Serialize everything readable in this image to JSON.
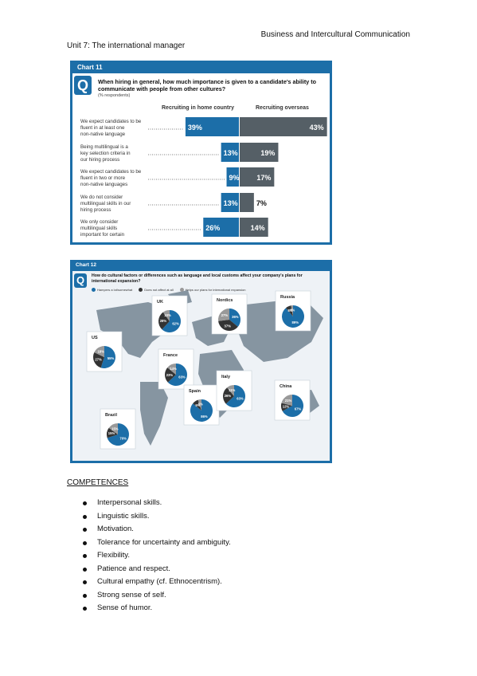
{
  "header": {
    "right": "Business and Intercultural Communication",
    "left": "Unit 7: The international manager"
  },
  "chart11": {
    "title": "Chart 11",
    "q_badge": "Q",
    "question": "When hiring in general, how much importance is given to a candidate's ability to communicate with people from other cultures?",
    "note": "(% respondents)",
    "col_home": "Recruiting in home country",
    "col_overseas": "Recruiting overseas"
  },
  "chart12": {
    "title": "Chart 12",
    "q_badge": "Q",
    "question": "How do cultural factors or differences such as language and local customs affect your company's plans for international expansion?",
    "legend": [
      {
        "label": "Hampers a lot/somewhat",
        "color": "#1c6ea8"
      },
      {
        "label": "Does not affect at all",
        "color": "#333333"
      },
      {
        "label": "Helps our plans for international expansion",
        "color": "#999999"
      }
    ]
  },
  "chart_data": [
    {
      "type": "bar",
      "title": "When hiring in general, how much importance is given to a candidate's ability to communicate with people from other cultures?",
      "categories": [
        "We expect candidates to be fluent in at least one non-native language",
        "Being multilingual is a key selection criteria in our hiring process",
        "We expect candidates to be fluent in two or more non-native languages",
        "We do not consider multilingual skills in our hiring process",
        "We only consider multilingual skills important for certain roles"
      ],
      "series": [
        {
          "name": "Recruiting in home country",
          "values": [
            39,
            13,
            9,
            13,
            26
          ],
          "color": "#1c6ea8"
        },
        {
          "name": "Recruiting overseas",
          "values": [
            43,
            19,
            17,
            7,
            14
          ],
          "color": "#555f66"
        }
      ],
      "unit": "%"
    },
    {
      "type": "pie",
      "title": "How do cultural factors or differences such as language and local customs affect your company's plans for international expansion?",
      "series": [
        "Hampers a lot/somewhat",
        "Does not affect at all",
        "Helps our plans for international expansion"
      ],
      "pies": [
        {
          "name": "UK",
          "values": [
            62,
            28,
            10
          ]
        },
        {
          "name": "Nordics",
          "values": [
            36,
            37,
            27
          ]
        },
        {
          "name": "Russia",
          "values": [
            89,
            8,
            3
          ]
        },
        {
          "name": "US",
          "values": [
            55,
            27,
            18
          ]
        },
        {
          "name": "France",
          "values": [
            63,
            23,
            14
          ]
        },
        {
          "name": "Spain",
          "values": [
            86,
            9,
            5
          ]
        },
        {
          "name": "Italy",
          "values": [
            63,
            26,
            11
          ]
        },
        {
          "name": "China",
          "values": [
            67,
            12,
            21
          ]
        },
        {
          "name": "Brazil",
          "values": [
            70,
            15,
            15
          ]
        }
      ]
    }
  ],
  "competences": {
    "heading": "COMPETENCES",
    "items": [
      "Interpersonal skills.",
      "Linguistic skills.",
      "Motivation.",
      "Tolerance for uncertainty and ambiguity.",
      "Flexibility.",
      "Patience and respect.",
      "Cultural empathy (cf. Ethnocentrism).",
      "Strong sense of self.",
      "Sense of humor."
    ]
  }
}
